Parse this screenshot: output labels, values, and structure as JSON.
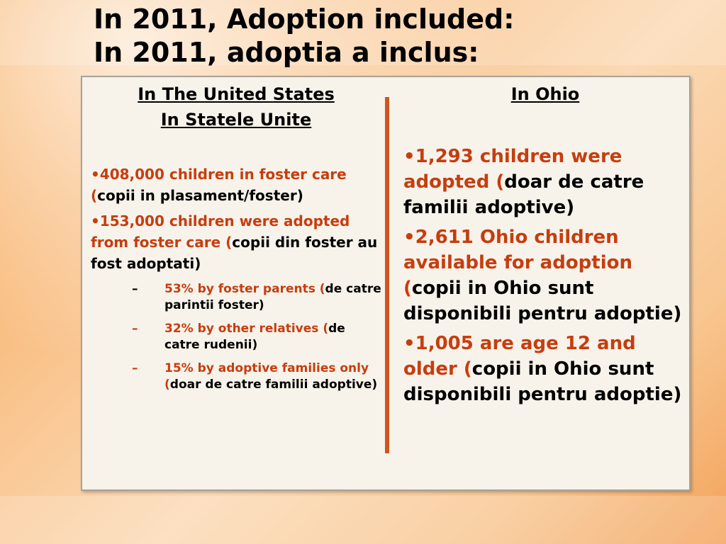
{
  "title": {
    "line1": "In 2011, Adoption included:",
    "line2": "In 2011, adoptia a inclus:"
  },
  "us": {
    "heading1": "In The United States",
    "heading2": "In Statele Unite",
    "bullets": [
      {
        "marker": "•",
        "red": "408,000 children in foster care (",
        "black": "copii in plasament/foster)"
      },
      {
        "marker": "•",
        "red": "153,000 children were adopted from foster care (",
        "black": "copii din foster au fost adoptati)"
      }
    ],
    "subitems": [
      {
        "marker": "–",
        "red": "53% by foster parents (",
        "black": "de catre parintii foster)"
      },
      {
        "marker": "–",
        "red": "32% by other relatives (",
        "black": "de catre rudenii)"
      },
      {
        "marker": "–",
        "red": "15% by adoptive families only (",
        "black": "doar de catre familii adoptive)"
      }
    ]
  },
  "ohio": {
    "heading": "In Ohio",
    "bullets": [
      {
        "marker": "•",
        "red": "1,293 children were adopted (",
        "black": "doar de catre familii adoptive)"
      },
      {
        "marker": "•",
        "red": "2,611 Ohio children available for adoption (",
        "black": "copii in Ohio sunt disponibili pentru adoptie)"
      },
      {
        "marker": "•",
        "red": "1,005 are age 12 and older (",
        "black": "copii in Ohio sunt disponibili pentru adoptie)"
      }
    ]
  },
  "colors": {
    "accent_red": "#c63d0f",
    "divider": "#d2541e",
    "panel_bg": "#f7f3ea"
  }
}
